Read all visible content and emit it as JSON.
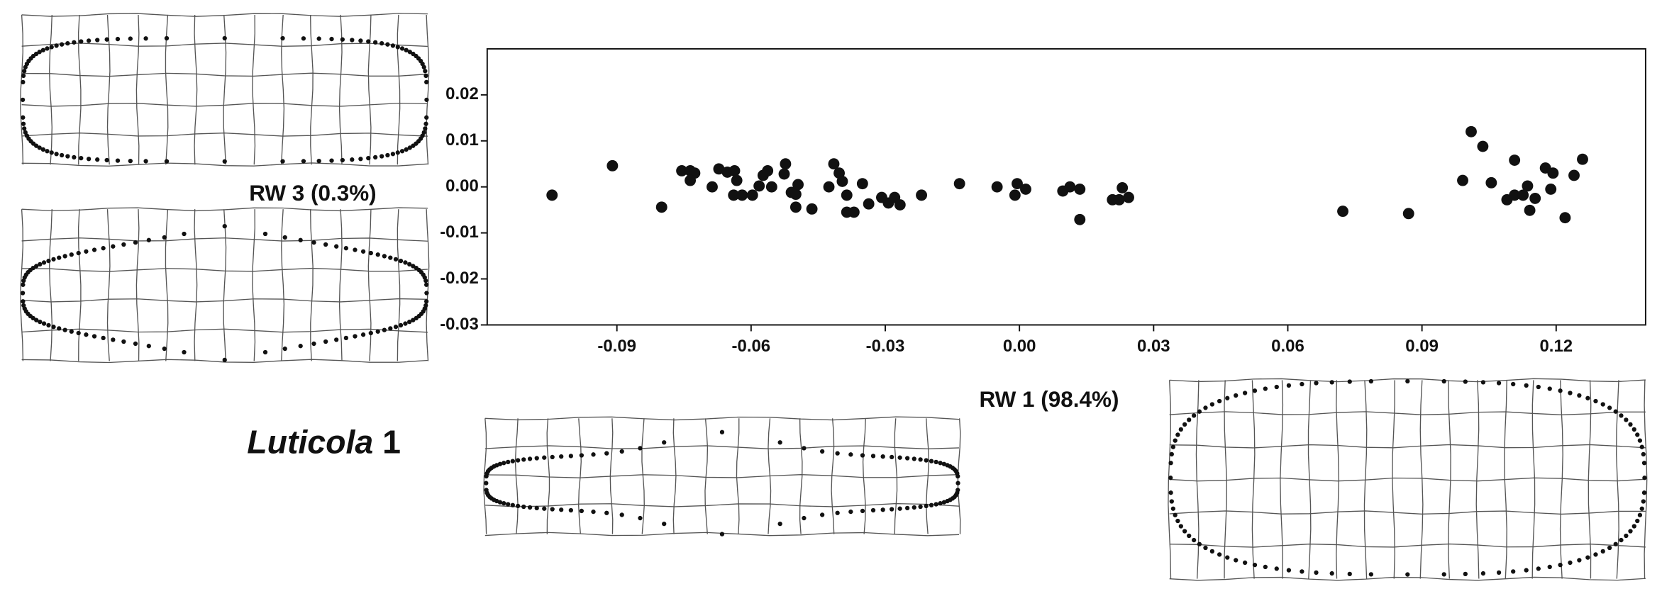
{
  "chart_data": {
    "type": "scatter",
    "title_parts": [
      "Luticola",
      "1"
    ],
    "x_label": "RW 1 (98.4%)",
    "y_label": "RW 3 (0.3%)",
    "color": "#111111",
    "xlim": [
      -0.119,
      0.14
    ],
    "ylim": [
      -0.03,
      0.03
    ],
    "xticks": [
      {
        "value": -0.09,
        "label": "-0.09"
      },
      {
        "value": -0.06,
        "label": "-0.06"
      },
      {
        "value": -0.03,
        "label": "-0.03"
      },
      {
        "value": 0,
        "label": "0.00"
      },
      {
        "value": 0.03,
        "label": "0.03"
      },
      {
        "value": 0.06,
        "label": "0.06"
      },
      {
        "value": 0.09,
        "label": "0.09"
      },
      {
        "value": 0.12,
        "label": "0.12"
      }
    ],
    "yticks": [
      {
        "value": -0.03,
        "label": "-0.03"
      },
      {
        "value": -0.02,
        "label": "-0.02"
      },
      {
        "value": -0.01,
        "label": "-0.01"
      },
      {
        "value": 0,
        "label": "0.00"
      },
      {
        "value": 0.01,
        "label": "0.01"
      },
      {
        "value": 0.02,
        "label": "0.02"
      }
    ],
    "x": [
      -0.1045,
      -0.091,
      -0.08,
      -0.0755,
      -0.0736,
      -0.0726,
      -0.0736,
      -0.0687,
      -0.0672,
      -0.0653,
      -0.0637,
      -0.0632,
      -0.0639,
      -0.062,
      -0.0597,
      -0.0582,
      -0.0573,
      -0.0563,
      -0.0554,
      -0.0526,
      -0.0523,
      -0.051,
      -0.05,
      -0.0495,
      -0.05,
      -0.0464,
      -0.0426,
      -0.0415,
      -0.0403,
      -0.0396,
      -0.0386,
      -0.0386,
      -0.037,
      -0.0351,
      -0.0337,
      -0.0308,
      -0.0293,
      -0.0279,
      -0.0267,
      -0.0219,
      -0.0134,
      -0.005,
      -0.001,
      -0.0005,
      0.0014,
      0.0097,
      0.0113,
      0.0135,
      0.0135,
      0.0208,
      0.0223,
      0.0244,
      0.023,
      0.0723,
      0.087,
      0.0991,
      0.101,
      0.1036,
      0.1055,
      0.109,
      0.1107,
      0.1126,
      0.1107,
      0.1136,
      0.1141,
      0.1153,
      0.1176,
      0.1188,
      0.1193,
      0.122,
      0.124,
      0.1259
    ],
    "values": [
      -0.0018,
      0.0046,
      -0.0044,
      0.0035,
      0.0035,
      0.003,
      0.0014,
      0,
      0.0039,
      0.0032,
      0.0035,
      0.0014,
      -0.0018,
      -0.0018,
      -0.0018,
      0.0002,
      0.0025,
      0.0035,
      0,
      0.0028,
      0.005,
      -0.0012,
      -0.0016,
      0.0005,
      -0.0044,
      -0.0048,
      0,
      0.005,
      0.003,
      0.0012,
      -0.0018,
      -0.0055,
      -0.0055,
      0.0007,
      -0.0037,
      -0.0023,
      -0.0035,
      -0.0023,
      -0.0039,
      -0.0018,
      0.0007,
      0,
      -0.0018,
      0.0007,
      -0.0005,
      -0.0009,
      0,
      -0.0005,
      -0.0071,
      -0.0028,
      -0.0028,
      -0.0023,
      -0.0002,
      -0.0053,
      -0.0058,
      0.0014,
      0.012,
      0.0088,
      0.0009,
      -0.0028,
      -0.0018,
      -0.0018,
      0.0058,
      0.0002,
      -0.0051,
      -0.0025,
      0.0041,
      -0.0005,
      0.003,
      -0.0067,
      0.0025,
      0.006
    ]
  }
}
